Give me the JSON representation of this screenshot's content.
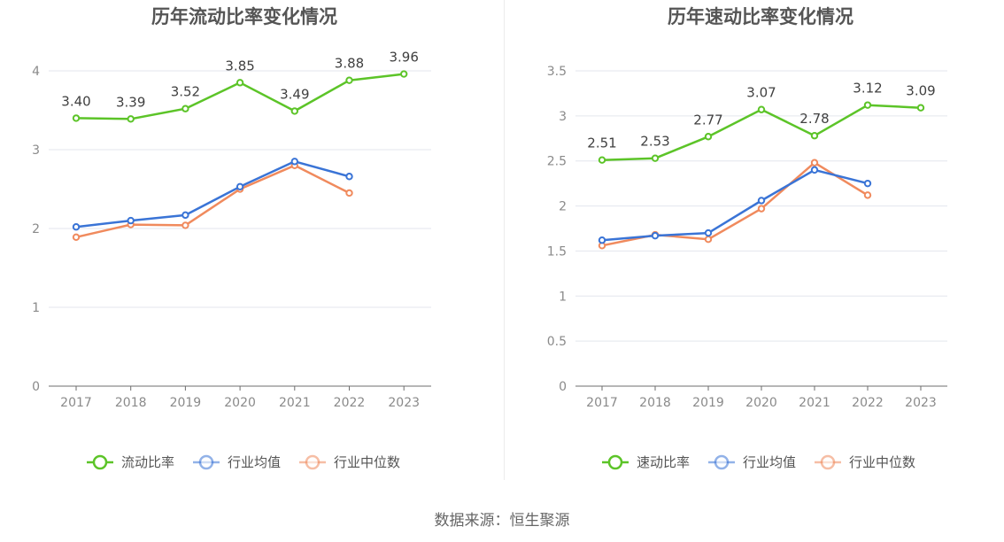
{
  "source_text": "数据来源：恒生聚源",
  "chart_data": [
    {
      "type": "line",
      "title": "历年流动比率变化情况",
      "categories": [
        "2017",
        "2018",
        "2019",
        "2020",
        "2021",
        "2022",
        "2023"
      ],
      "ylim": [
        0,
        4
      ],
      "yticks": [
        "0",
        "1",
        "2",
        "3",
        "4"
      ],
      "grid": true,
      "legend_position": "bottom",
      "series": [
        {
          "name": "流动比率",
          "color": "#5cc428",
          "values": [
            3.4,
            3.39,
            3.52,
            3.85,
            3.49,
            3.88,
            3.96
          ],
          "labels": [
            "3.40",
            "3.39",
            "3.52",
            "3.85",
            "3.49",
            "3.88",
            "3.96"
          ]
        },
        {
          "name": "行业均值",
          "color": "#3a74d6",
          "values": [
            2.02,
            2.1,
            2.17,
            2.53,
            2.85,
            2.66,
            null
          ]
        },
        {
          "name": "行业中位数",
          "color": "#f08a5d",
          "values": [
            1.89,
            2.05,
            2.04,
            2.5,
            2.8,
            2.45,
            null
          ]
        }
      ]
    },
    {
      "type": "line",
      "title": "历年速动比率变化情况",
      "categories": [
        "2017",
        "2018",
        "2019",
        "2020",
        "2021",
        "2022",
        "2023"
      ],
      "ylim": [
        0,
        3.5
      ],
      "yticks": [
        "0",
        "0.5",
        "1",
        "1.5",
        "2",
        "2.5",
        "3",
        "3.5"
      ],
      "grid": true,
      "legend_position": "bottom",
      "series": [
        {
          "name": "速动比率",
          "color": "#5cc428",
          "values": [
            2.51,
            2.53,
            2.77,
            3.07,
            2.78,
            3.12,
            3.09
          ],
          "labels": [
            "2.51",
            "2.53",
            "2.77",
            "3.07",
            "2.78",
            "3.12",
            "3.09"
          ]
        },
        {
          "name": "行业均值",
          "color": "#3a74d6",
          "values": [
            1.62,
            1.67,
            1.7,
            2.06,
            2.4,
            2.25,
            null
          ]
        },
        {
          "name": "行业中位数",
          "color": "#f08a5d",
          "values": [
            1.56,
            1.68,
            1.63,
            1.97,
            2.48,
            2.12,
            null
          ]
        }
      ]
    }
  ]
}
